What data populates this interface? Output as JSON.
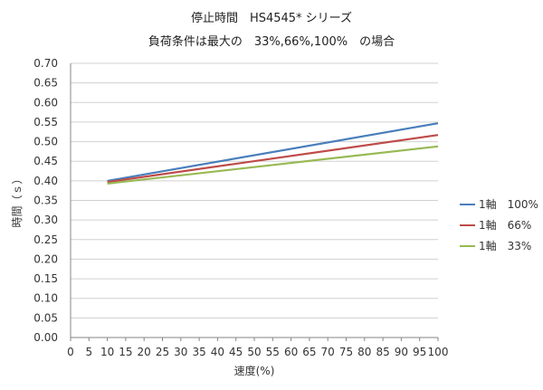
{
  "header": {
    "title": "停止時間　HS4545* シリーズ",
    "subtitle": "負荷条件は最大の　33%,66%,100%　の場合"
  },
  "chart_data": {
    "type": "line",
    "title": "停止時間　HS4545* シリーズ",
    "subtitle": "負荷条件は最大の　33%,66%,100%　の場合",
    "xlabel": "速度(%)",
    "ylabel": "時間（ｓ）",
    "x_ticks": [
      "0",
      "5",
      "10",
      "15",
      "20",
      "25",
      "30",
      "35",
      "40",
      "45",
      "50",
      "55",
      "60",
      "65",
      "70",
      "75",
      "80",
      "85",
      "90",
      "95",
      "100"
    ],
    "y_ticks": [
      "0.00",
      "0.05",
      "0.10",
      "0.15",
      "0.20",
      "0.25",
      "0.30",
      "0.35",
      "0.40",
      "0.45",
      "0.50",
      "0.55",
      "0.60",
      "0.65",
      "0.70"
    ],
    "xlim": [
      0,
      100
    ],
    "ylim": [
      0,
      0.7
    ],
    "grid": "horizontal",
    "legend_position": "right",
    "series": [
      {
        "name": "1軸　100%",
        "color": "#4A7EBB",
        "x": [
          10,
          100
        ],
        "y": [
          0.4,
          0.547
        ]
      },
      {
        "name": "1軸　66%",
        "color": "#BE4B48",
        "x": [
          10,
          100
        ],
        "y": [
          0.397,
          0.517
        ]
      },
      {
        "name": "1軸　33%",
        "color": "#98B954",
        "x": [
          10,
          100
        ],
        "y": [
          0.393,
          0.488
        ]
      }
    ]
  }
}
